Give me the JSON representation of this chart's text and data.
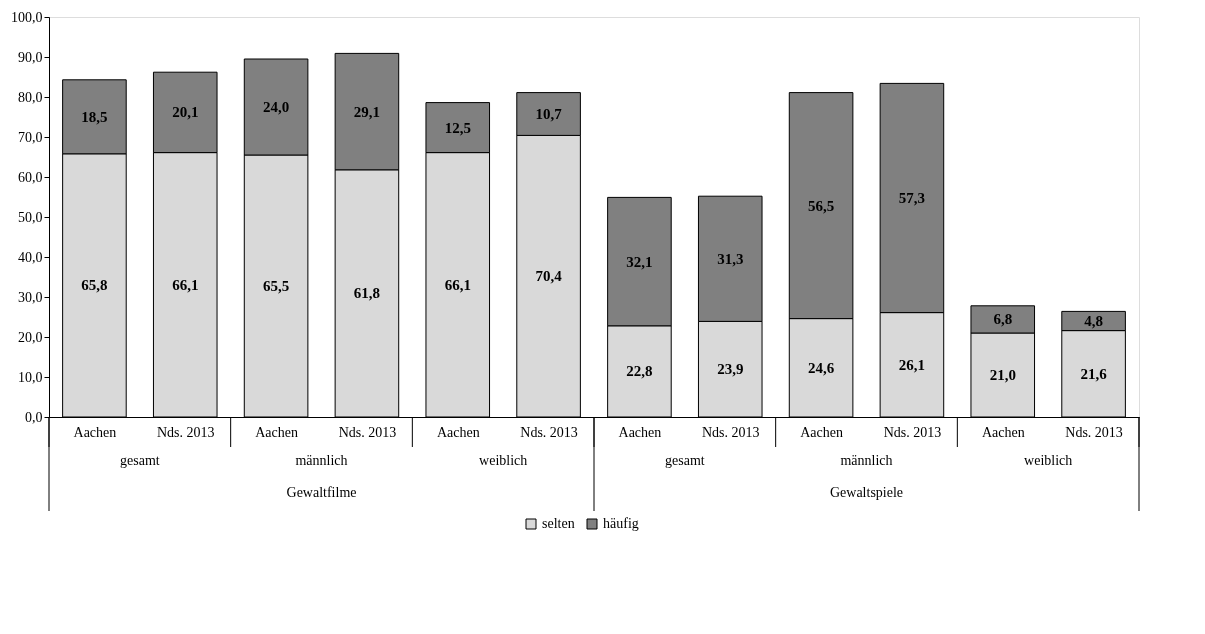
{
  "chart_data": {
    "type": "bar",
    "stacked": true,
    "categories": [
      "Aachen",
      "Nds. 2013",
      "Aachen",
      "Nds. 2013",
      "Aachen",
      "Nds. 2013",
      "Aachen",
      "Nds. 2013",
      "Aachen",
      "Nds. 2013",
      "Aachen",
      "Nds. 2013"
    ],
    "series": [
      {
        "name": "selten",
        "color": "#d9d9d9",
        "values": [
          65.8,
          66.1,
          65.5,
          61.8,
          66.1,
          70.4,
          22.8,
          23.9,
          24.6,
          26.1,
          21.0,
          21.6
        ],
        "value_labels": [
          "65,8",
          "66,1",
          "65,5",
          "61,8",
          "66,1",
          "70,4",
          "22,8",
          "23,9",
          "24,6",
          "26,1",
          "21,0",
          "21,6"
        ]
      },
      {
        "name": "häufig",
        "color": "#808080",
        "values": [
          18.5,
          20.1,
          24.0,
          29.1,
          12.5,
          10.7,
          32.1,
          31.3,
          56.5,
          57.3,
          6.8,
          4.8
        ],
        "value_labels": [
          "18,5",
          "20,1",
          "24,0",
          "29,1",
          "12,5",
          "10,7",
          "32,1",
          "31,3",
          "56,5",
          "57,3",
          "6,8",
          "4,8"
        ]
      }
    ],
    "ylim": [
      0,
      100
    ],
    "yticks": [
      {
        "value": 0,
        "label": "0,0"
      },
      {
        "value": 10,
        "label": "10,0"
      },
      {
        "value": 20,
        "label": "20,0"
      },
      {
        "value": 30,
        "label": "30,0"
      },
      {
        "value": 40,
        "label": "40,0"
      },
      {
        "value": 50,
        "label": "50,0"
      },
      {
        "value": 60,
        "label": "60,0"
      },
      {
        "value": 70,
        "label": "70,0"
      },
      {
        "value": 80,
        "label": "80,0"
      },
      {
        "value": 90,
        "label": "90,0"
      },
      {
        "value": 100,
        "label": "100,0"
      }
    ],
    "annotations": [
      "gesamt",
      "männlich",
      "weiblich",
      "gesamt",
      "männlich",
      "weiblich",
      "Gewaltfilme",
      "Gewaltspiele"
    ],
    "legend": "bottom",
    "grid": false
  }
}
